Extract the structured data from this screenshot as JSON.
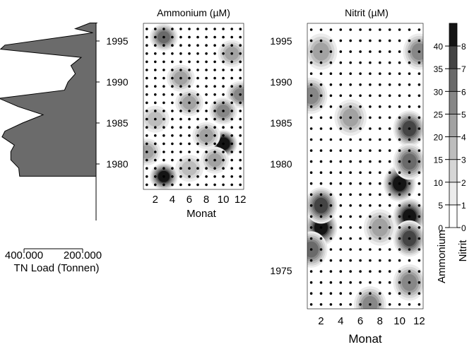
{
  "chart_data": [
    {
      "type": "area",
      "orientation": "horizontal",
      "xlabel": "TN Load (Tonnen)",
      "x_ticks": [
        "400.000",
        "200.000"
      ],
      "x_tick_values": [
        400000,
        200000
      ],
      "xlim": [
        500000,
        150000
      ],
      "x_reversed": true,
      "y_ticks": [
        "1995",
        "1990",
        "1985",
        "1980"
      ],
      "y_tick_values": [
        1995,
        1990,
        1985,
        1980
      ],
      "ylim": [
        1977.5,
        1997.4
      ],
      "years": [
        1997.2,
        1996.5,
        1996,
        1994.5,
        1994,
        1993,
        1992,
        1991,
        1990,
        1989,
        1988,
        1987,
        1986,
        1985,
        1984,
        1983.3,
        1982.3,
        1981.5,
        1980.5,
        1979.5,
        1978.5
      ],
      "values": [
        175000,
        225000,
        165000,
        465000,
        480000,
        205000,
        240000,
        225000,
        250000,
        262000,
        485000,
        420000,
        335000,
        405000,
        465000,
        475000,
        433000,
        445000,
        445000,
        418000,
        415000
      ]
    },
    {
      "type": "heatmap",
      "title": "Ammonium (µM)",
      "xlabel": "Monat",
      "x_ticks": [
        "2",
        "4",
        "6",
        "8",
        "10",
        "12"
      ],
      "x_tick_values": [
        2,
        4,
        6,
        8,
        10,
        12
      ],
      "xlim": [
        0.6,
        12.4
      ],
      "years": [
        1978,
        1997
      ],
      "ylim": [
        1977.5,
        1997.4
      ],
      "hotspots": [
        {
          "month": 3,
          "year": 1996,
          "value": 28
        },
        {
          "month": 10,
          "year": 1983,
          "value": 42
        },
        {
          "month": 3,
          "year": 1979,
          "value": 38
        },
        {
          "month": 12,
          "year": 1989,
          "value": 22
        },
        {
          "month": 10,
          "year": 1987,
          "value": 20
        },
        {
          "month": 5,
          "year": 1991,
          "value": 17
        },
        {
          "month": 6,
          "year": 1988,
          "value": 16
        },
        {
          "month": 1,
          "year": 1982,
          "value": 17
        },
        {
          "month": 11,
          "year": 1994,
          "value": 15
        },
        {
          "month": 8,
          "year": 1984,
          "value": 15
        },
        {
          "month": 6,
          "year": 1980,
          "value": 14
        },
        {
          "month": 9,
          "year": 1981,
          "value": 16
        },
        {
          "month": 2,
          "year": 1986,
          "value": 12
        }
      ]
    },
    {
      "type": "heatmap",
      "title": "Nitrit (µM)",
      "xlabel": "Monat",
      "x_ticks": [
        "2",
        "4",
        "6",
        "8",
        "10",
        "12"
      ],
      "x_tick_values": [
        2,
        4,
        6,
        8,
        10,
        12
      ],
      "xlim": [
        0.6,
        12.4
      ],
      "y_ticks": [
        "1995",
        "1990",
        "1985",
        "1980",
        "1975"
      ],
      "y_tick_values": [
        1995,
        1990,
        1985,
        1980,
        1975
      ],
      "years": [
        1972,
        1997
      ],
      "ylim": [
        1971.4,
        1997.4
      ],
      "hotspots": [
        {
          "month": 2,
          "year": 1979,
          "value": 7.5
        },
        {
          "month": 2,
          "year": 1981,
          "value": 6
        },
        {
          "month": 1,
          "year": 1977,
          "value": 5
        },
        {
          "month": 10,
          "year": 1983,
          "value": 7
        },
        {
          "month": 11,
          "year": 1980,
          "value": 7
        },
        {
          "month": 11,
          "year": 1978,
          "value": 6
        },
        {
          "month": 11,
          "year": 1988,
          "value": 6
        },
        {
          "month": 11,
          "year": 1985,
          "value": 5
        },
        {
          "month": 12,
          "year": 1995,
          "value": 4
        },
        {
          "month": 7,
          "year": 1972,
          "value": 4.5
        },
        {
          "month": 11,
          "year": 1974,
          "value": 4
        },
        {
          "month": 2,
          "year": 1995,
          "value": 3
        },
        {
          "month": 5,
          "year": 1989,
          "value": 3
        },
        {
          "month": 8,
          "year": 1979,
          "value": 3.5
        },
        {
          "month": 1,
          "year": 1991,
          "value": 4
        }
      ]
    }
  ],
  "colorbar": {
    "levels": 9,
    "ammonium_ticks": [
      "0",
      "5",
      "10",
      "15",
      "20",
      "25",
      "30",
      "35",
      "40"
    ],
    "nitrit_ticks": [
      "0",
      "1",
      "2",
      "3",
      "4",
      "5",
      "6",
      "7",
      "8"
    ],
    "ammonium_label": "Ammonium",
    "nitrit_label": "Nitrit",
    "colors": [
      "#ffffff",
      "#ececec",
      "#d6d6d6",
      "#bdbdbd",
      "#a2a2a2",
      "#878787",
      "#6a6a6a",
      "#444444",
      "#141414"
    ]
  }
}
